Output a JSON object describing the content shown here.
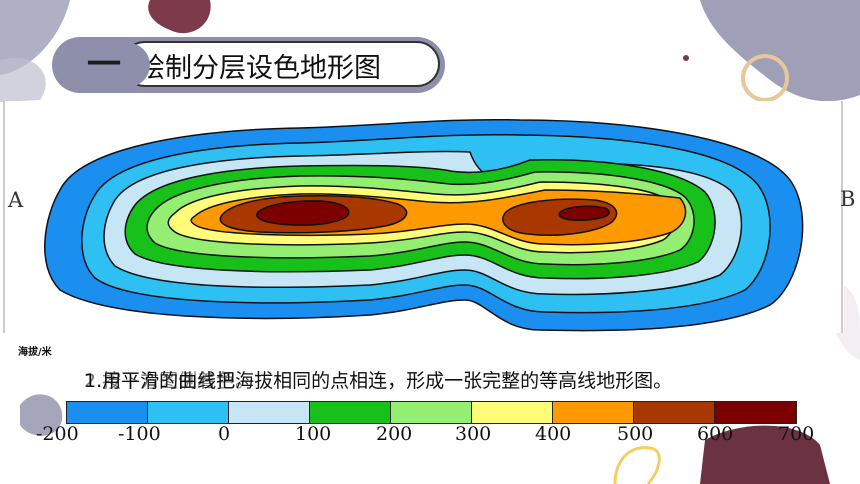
{
  "section": {
    "number": "一",
    "title": "绘制分层设色地形图"
  },
  "labels": {
    "a": "A",
    "b": "B",
    "y_axis_unit": "海拔/米"
  },
  "instructions": [
    "1.用平滑的曲线把海拔相同的点相连，形成一张完整的等高线地形图。",
    "2.按下方图例着色。"
  ],
  "legend": {
    "colors": [
      "#1a8ff0",
      "#2ec0f2",
      "#c6e6f5",
      "#18c11a",
      "#94ee71",
      "#fffc79",
      "#ff9900",
      "#a83800",
      "#7d0000"
    ],
    "ticks": [
      "-200",
      "-100",
      "0",
      "100",
      "200",
      "300",
      "400",
      "500",
      "600",
      "700"
    ]
  },
  "map_colors": {
    "outer": "#1a8ff0",
    "ring2": "#2ec0f2",
    "ring3": "#c6e6f5",
    "ring4": "#18c11a",
    "ring5": "#94ee71",
    "ring6": "#fffc79",
    "ring7": "#ff9900",
    "ring8": "#a83800",
    "peak": "#7d0000"
  }
}
